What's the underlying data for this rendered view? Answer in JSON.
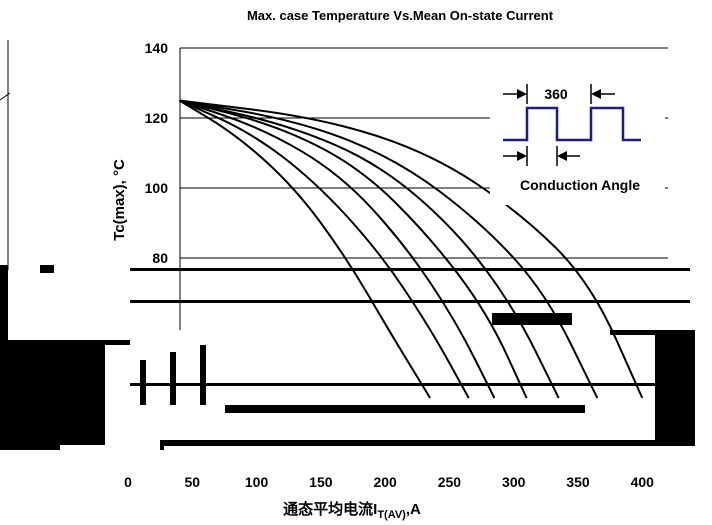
{
  "chart_data": {
    "type": "line",
    "title": "Max. case Temperature Vs.Mean On-state Current",
    "xlabel": "通态平均电流I",
    "xlabel_sub": "T(AV)",
    "xlabel_unit": ",A",
    "ylabel": "Tc(max), °C",
    "xlim": [
      0,
      420
    ],
    "ylim": [
      20,
      140
    ],
    "x_ticks": [
      "0",
      "50",
      "100",
      "150",
      "200",
      "250",
      "300",
      "350",
      "400"
    ],
    "y_ticks": [
      "140",
      "120",
      "100",
      "80"
    ],
    "grid": true,
    "inset": {
      "period_label": "360",
      "angle_label": "Conduction Angle",
      "waveform_color": "#1a1a8c"
    },
    "series": [
      {
        "x": [
          40,
          85,
          130,
          170,
          205,
          235
        ],
        "y": [
          125,
          115,
          100,
          80,
          58,
          40
        ]
      },
      {
        "x": [
          40,
          95,
          145,
          195,
          235,
          265
        ],
        "y": [
          125,
          116,
          102,
          82,
          60,
          40
        ]
      },
      {
        "x": [
          40,
          105,
          165,
          215,
          255,
          285
        ],
        "y": [
          125,
          117,
          104,
          84,
          62,
          40
        ]
      },
      {
        "x": [
          40,
          115,
          180,
          235,
          280,
          310
        ],
        "y": [
          125,
          118,
          106,
          86,
          64,
          40
        ]
      },
      {
        "x": [
          40,
          125,
          195,
          255,
          300,
          335
        ],
        "y": [
          125,
          118,
          107,
          88,
          66,
          40
        ]
      },
      {
        "x": [
          40,
          135,
          210,
          275,
          325,
          365
        ],
        "y": [
          125,
          119,
          108,
          90,
          70,
          40
        ]
      },
      {
        "x": [
          40,
          150,
          235,
          305,
          360,
          400
        ],
        "y": [
          125,
          120,
          110,
          93,
          73,
          40
        ]
      }
    ]
  }
}
